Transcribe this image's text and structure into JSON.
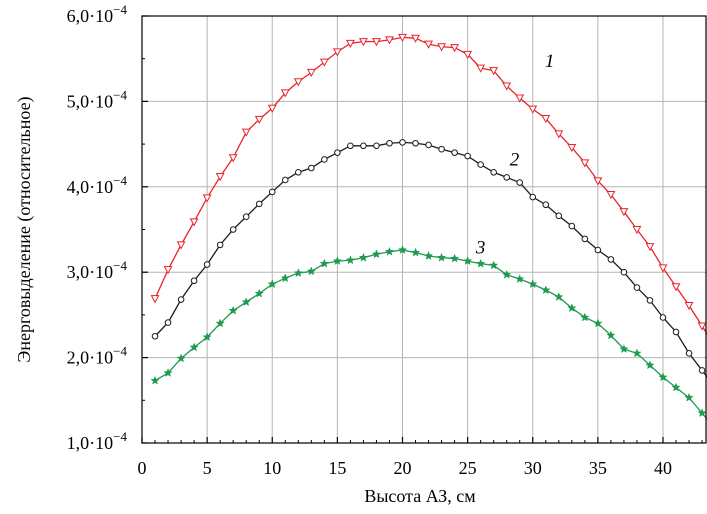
{
  "chart_data": {
    "type": "line",
    "xlabel": "Высота АЗ, см",
    "ylabel": "Энерговыделение (относительное)",
    "xlim": [
      0,
      43.5
    ],
    "ylim": [
      1.0,
      6.0
    ],
    "x_ticks": [
      0,
      5,
      10,
      15,
      20,
      25,
      30,
      35,
      40
    ],
    "x_tick_labels": [
      "0",
      "5",
      "10",
      "15",
      "20",
      "25",
      "30",
      "35",
      "40"
    ],
    "y_ticks": [
      1,
      2,
      3,
      4,
      5,
      6
    ],
    "y_tick_labels": [
      {
        "mantissa": "1,0",
        "base": "·10",
        "exp": "−4"
      },
      {
        "mantissa": "2,0",
        "base": "·10",
        "exp": "−4"
      },
      {
        "mantissa": "3,0",
        "base": "·10",
        "exp": "−4"
      },
      {
        "mantissa": "4,0",
        "base": "·10",
        "exp": "−4"
      },
      {
        "mantissa": "5,0",
        "base": "·10",
        "exp": "−4"
      },
      {
        "mantissa": "6,0",
        "base": "·10",
        "exp": "−4"
      }
    ],
    "grid": true,
    "y_scale_factor": "1e-4",
    "x": [
      1,
      2,
      3,
      4,
      5,
      6,
      7,
      8,
      9,
      10,
      11,
      12,
      13,
      14,
      15,
      16,
      17,
      18,
      19,
      20,
      21,
      22,
      23,
      24,
      25,
      26,
      27,
      28,
      29,
      30,
      31,
      32,
      33,
      34,
      35,
      36,
      37,
      38,
      39,
      40,
      41,
      42,
      43
    ],
    "series": [
      {
        "label": "1",
        "color": "#e8242a",
        "marker": "triangle-down",
        "values": [
          2.69,
          3.03,
          3.32,
          3.59,
          3.87,
          4.12,
          4.34,
          4.64,
          4.79,
          4.92,
          5.1,
          5.23,
          5.34,
          5.46,
          5.58,
          5.68,
          5.7,
          5.7,
          5.72,
          5.75,
          5.74,
          5.67,
          5.64,
          5.63,
          5.55,
          5.39,
          5.36,
          5.18,
          5.04,
          4.91,
          4.8,
          4.62,
          4.46,
          4.28,
          4.07,
          3.91,
          3.71,
          3.5,
          3.3,
          3.05,
          2.83,
          2.61,
          2.37
        ],
        "label_x": 31.3,
        "label_y": 5.4
      },
      {
        "label": "2",
        "color": "#1c1c1c",
        "marker": "circle",
        "values": [
          2.25,
          2.41,
          2.68,
          2.9,
          3.09,
          3.32,
          3.5,
          3.65,
          3.8,
          3.94,
          4.08,
          4.17,
          4.22,
          4.32,
          4.4,
          4.48,
          4.48,
          4.48,
          4.51,
          4.52,
          4.51,
          4.49,
          4.44,
          4.4,
          4.36,
          4.26,
          4.17,
          4.11,
          4.05,
          3.88,
          3.79,
          3.66,
          3.54,
          3.39,
          3.26,
          3.15,
          3.0,
          2.82,
          2.67,
          2.47,
          2.3,
          2.05,
          1.85
        ],
        "label_x": 28.6,
        "label_y": 4.25
      },
      {
        "label": "3",
        "color": "#1f9a4e",
        "marker": "star",
        "values": [
          1.73,
          1.82,
          1.99,
          2.12,
          2.24,
          2.4,
          2.55,
          2.65,
          2.75,
          2.86,
          2.93,
          2.99,
          3.01,
          3.1,
          3.13,
          3.14,
          3.17,
          3.21,
          3.24,
          3.26,
          3.23,
          3.19,
          3.17,
          3.16,
          3.13,
          3.1,
          3.08,
          2.97,
          2.92,
          2.86,
          2.79,
          2.71,
          2.58,
          2.47,
          2.4,
          2.26,
          2.1,
          2.05,
          1.91,
          1.77,
          1.65,
          1.53,
          1.35
        ],
        "label_x": 26.0,
        "label_y": 3.22
      }
    ]
  }
}
